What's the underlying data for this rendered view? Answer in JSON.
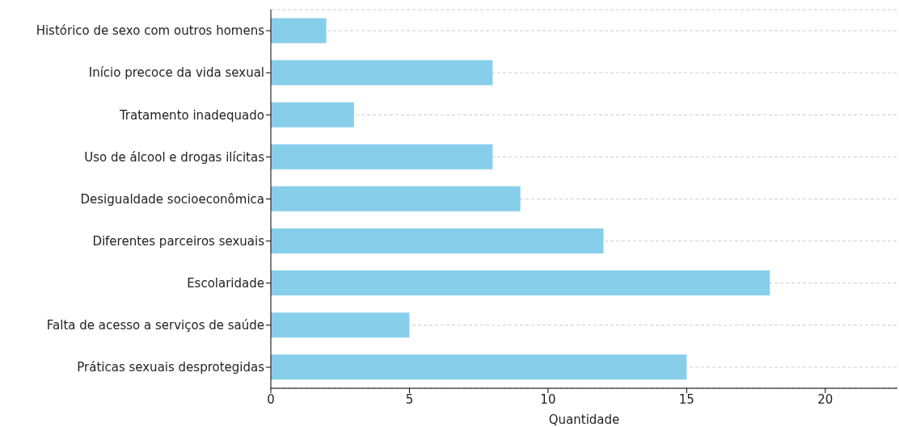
{
  "chart_data": {
    "type": "bar",
    "orientation": "horizontal",
    "xlabel": "Quantidade",
    "categories": [
      "Histórico de sexo com outros homens",
      "Início precoce da vida sexual",
      "Tratamento inadequado",
      "Uso de álcool e drogas ilícitas",
      "Desigualdade socioeconômica",
      "Diferentes parceiros sexuais",
      "Escolaridade",
      "Falta de acesso a serviços de saúde",
      "Práticas sexuais desprotegidas"
    ],
    "values": [
      2,
      8,
      3,
      8,
      9,
      12,
      18,
      5,
      15
    ],
    "color": "#87ceeb",
    "xlim": [
      0,
      22.6
    ],
    "xticks": [
      0,
      5,
      10,
      15,
      20
    ],
    "grid": "y"
  }
}
